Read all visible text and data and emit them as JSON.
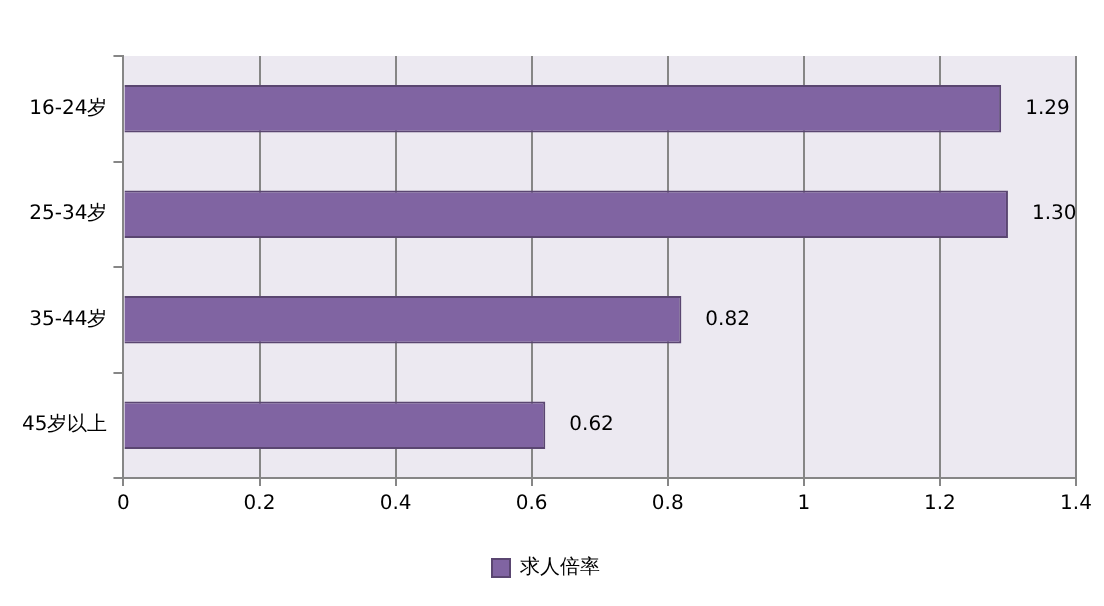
{
  "chart_data": {
    "type": "bar",
    "orientation": "horizontal",
    "categories": [
      "16-24岁",
      "25-34岁",
      "35-44岁",
      "45岁以上"
    ],
    "series": [
      {
        "name": "求人倍率",
        "color": "#8064a2",
        "values": [
          1.29,
          1.3,
          0.82,
          0.62
        ],
        "value_labels": [
          "1.29",
          "1.30",
          "0.82",
          "0.62"
        ]
      }
    ],
    "xlim": [
      0,
      1.4
    ],
    "xticks": [
      0,
      0.2,
      0.4,
      0.6,
      0.8,
      1,
      1.2,
      1.4
    ],
    "grid": "x",
    "legend": "bottom"
  }
}
